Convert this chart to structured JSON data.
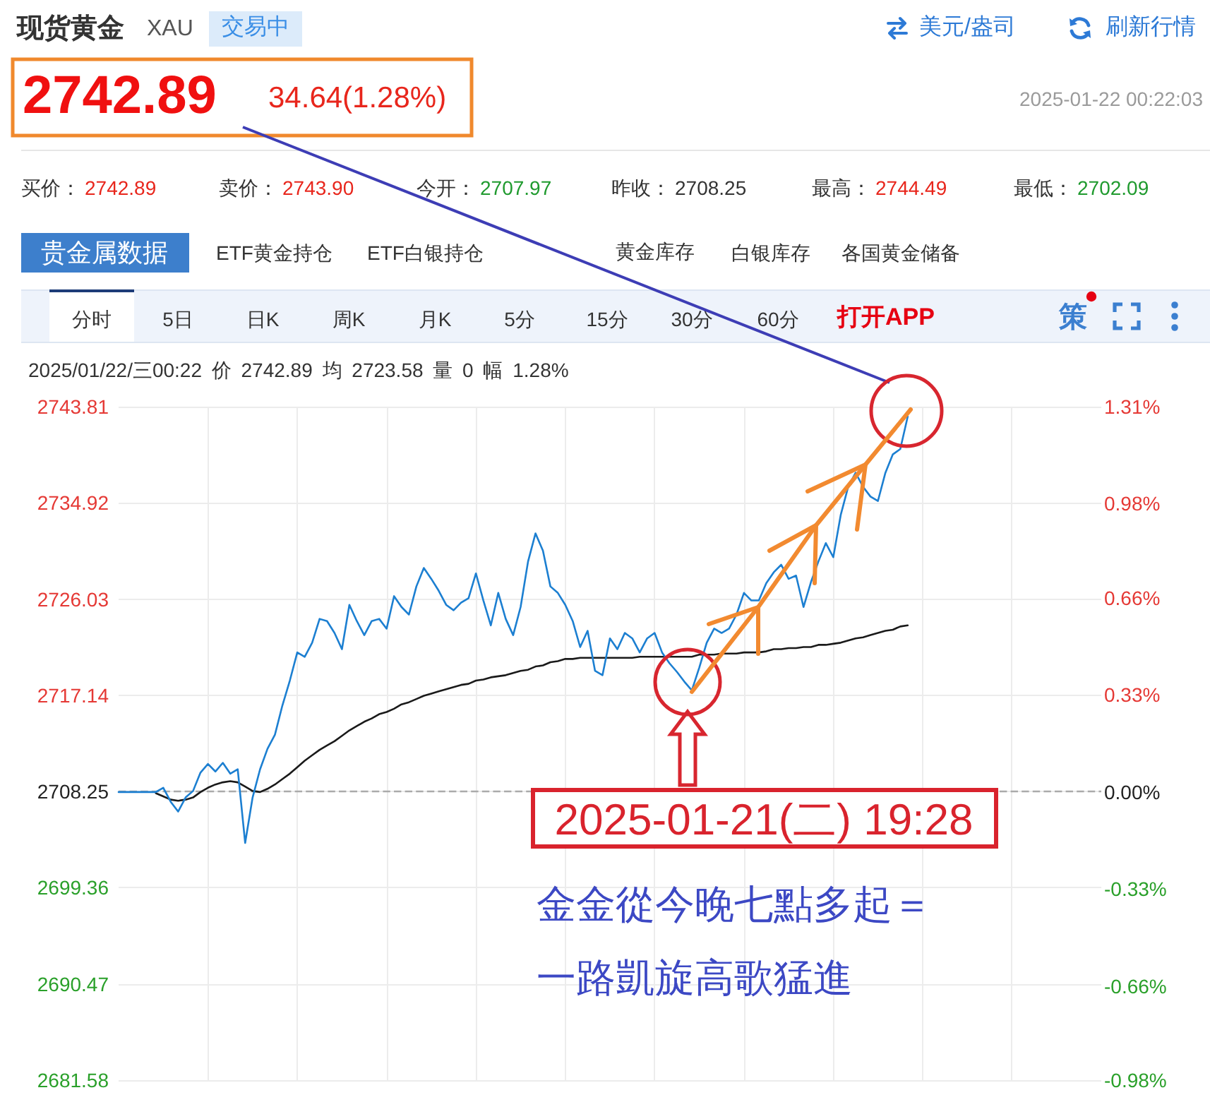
{
  "chart_data": {
    "type": "line",
    "title": "现货黄金",
    "subtitle": "XAU",
    "categories": [
      null,
      null,
      null,
      null,
      null,
      null,
      null,
      null,
      null,
      null,
      null,
      null,
      null,
      null,
      null,
      null,
      null,
      null,
      null,
      null,
      null,
      null,
      null,
      null,
      null,
      null,
      null,
      null,
      null,
      null,
      null,
      null,
      null,
      null,
      null,
      null,
      null,
      null,
      null,
      null,
      null,
      null,
      null,
      null,
      null,
      null,
      null,
      null,
      null,
      null,
      null,
      null,
      null,
      null,
      null,
      null,
      null,
      null,
      null,
      null,
      null,
      null,
      null,
      null,
      null,
      null,
      null,
      null,
      null,
      null,
      null,
      null,
      null,
      null,
      null,
      null,
      null,
      null,
      null,
      null,
      null,
      null,
      null,
      null,
      null,
      null,
      null,
      null,
      null,
      null,
      null,
      null,
      null,
      null,
      null,
      null,
      null,
      null,
      null,
      null,
      null,
      null,
      null,
      null,
      null,
      null,
      null,
      null,
      null,
      null,
      null,
      null,
      null,
      null,
      null,
      null,
      null,
      null,
      null,
      null,
      null,
      null,
      null,
      null,
      null,
      null,
      null,
      null,
      null,
      null,
      null,
      null,
      null
    ],
    "series": [
      {
        "color": "#1c7fd1",
        "values": [
          2708.2,
          2708.2,
          2708.2,
          2708.2,
          2708.2,
          2708.2,
          2708.6,
          2707.3,
          2706.4,
          2707.7,
          2708.3,
          2710.0,
          2710.8,
          2710.1,
          2710.9,
          2709.9,
          2710.3,
          2703.5,
          2707.7,
          2710.3,
          2712.2,
          2713.5,
          2716.2,
          2718.5,
          2721.1,
          2720.7,
          2722.0,
          2724.2,
          2724.0,
          2722.9,
          2721.4,
          2725.5,
          2724.0,
          2722.7,
          2724.0,
          2724.2,
          2723.3,
          2726.3,
          2725.3,
          2724.6,
          2727.2,
          2728.9,
          2727.9,
          2726.8,
          2725.5,
          2725.0,
          2725.7,
          2726.1,
          2728.4,
          2725.9,
          2723.6,
          2726.6,
          2724.2,
          2722.7,
          2725.3,
          2729.5,
          2732.1,
          2730.5,
          2727.2,
          2726.6,
          2725.5,
          2724.0,
          2721.6,
          2723.1,
          2719.4,
          2719.0,
          2722.4,
          2721.4,
          2722.9,
          2722.4,
          2721.1,
          2722.4,
          2722.9,
          2721.1,
          2720.1,
          2719.3,
          2718.4,
          2717.6,
          2719.7,
          2722.0,
          2723.3,
          2722.9,
          2723.3,
          2724.6,
          2726.6,
          2725.9,
          2725.9,
          2727.5,
          2728.5,
          2729.2,
          2727.9,
          2728.2,
          2725.3,
          2727.6,
          2729.5,
          2731.2,
          2729.9,
          2733.8,
          2736.4,
          2737.7,
          2736.4,
          2735.5,
          2735.1,
          2737.7,
          2739.4,
          2739.9,
          2742.9,
          null,
          null,
          null,
          null,
          null,
          null,
          null,
          null,
          null,
          null,
          null,
          null,
          null,
          null,
          null,
          null,
          null,
          null,
          null,
          null,
          null,
          null,
          null,
          null,
          null,
          null
        ]
      },
      {
        "color": "#1a1a1a",
        "values": [
          null,
          null,
          null,
          null,
          null,
          2708.1,
          2707.8,
          2707.5,
          2707.4,
          2707.5,
          2707.7,
          2708.2,
          2708.6,
          2708.9,
          2709.1,
          2709.2,
          2709.1,
          2708.7,
          2708.3,
          2708.2,
          2708.5,
          2708.9,
          2709.4,
          2709.9,
          2710.5,
          2711.1,
          2711.6,
          2712.1,
          2712.5,
          2712.9,
          2713.4,
          2713.9,
          2714.3,
          2714.7,
          2715.0,
          2715.4,
          2715.6,
          2715.9,
          2716.3,
          2716.5,
          2716.8,
          2717.1,
          2717.3,
          2717.5,
          2717.7,
          2717.9,
          2718.1,
          2718.2,
          2718.5,
          2718.6,
          2718.8,
          2718.9,
          2719.0,
          2719.2,
          2719.4,
          2719.5,
          2719.8,
          2719.9,
          2720.2,
          2720.3,
          2720.5,
          2720.5,
          2720.6,
          2720.6,
          2720.6,
          2720.6,
          2720.6,
          2720.6,
          2720.6,
          2720.6,
          2720.7,
          2720.7,
          2720.7,
          2720.7,
          2720.7,
          2720.7,
          2720.7,
          2720.7,
          2720.9,
          2720.9,
          2720.9,
          2721.0,
          2721.0,
          2721.0,
          2721.1,
          2721.1,
          2721.1,
          2721.2,
          2721.4,
          2721.4,
          2721.5,
          2721.5,
          2721.6,
          2721.6,
          2721.8,
          2721.8,
          2721.9,
          2722.0,
          2722.2,
          2722.4,
          2722.5,
          2722.7,
          2722.9,
          2723.1,
          2723.2,
          2723.5,
          2723.6,
          null,
          null,
          null,
          null,
          null,
          null,
          null,
          null,
          null,
          null,
          null,
          null,
          null,
          null,
          null,
          null,
          null,
          null,
          null,
          null,
          null,
          null,
          null,
          null,
          null,
          null
        ]
      }
    ],
    "ylim": [
      2681.58,
      2743.81
    ],
    "yticks": [
      2681.58,
      2690.47,
      2699.36,
      2708.25,
      2717.14,
      2726.03,
      2734.92,
      2743.81
    ],
    "y2lim": [
      -0.98,
      1.31
    ],
    "y2ticks": [
      {
        "value": -0.98,
        "label": "-0.98%"
      },
      {
        "value": -0.66,
        "label": "-0.66%"
      },
      {
        "value": -0.33,
        "label": "-0.33%"
      },
      {
        "value": 0,
        "label": "0.00%"
      },
      {
        "value": 0.33,
        "label": "0.33%"
      },
      {
        "value": 0.66,
        "label": "0.66%"
      },
      {
        "value": 0.98,
        "label": "0.98%"
      },
      {
        "value": 1.31,
        "label": "1.31%"
      }
    ],
    "ref_lines": [
      {
        "axis": "y",
        "value": 2708.25,
        "color": "#aaaaaa",
        "line_style": "dashed"
      }
    ],
    "grid": true,
    "marker": "none",
    "tick_labels": "y",
    "annotations": [
      "交易中",
      "美元/盎司",
      "刷新行情",
      "2742.89",
      "34.64(1.28%)",
      "2025-01-22 00:22:03",
      "买价：",
      "2742.89",
      "卖价：",
      "2743.90",
      "今开：",
      "2707.97",
      "昨收：",
      "2708.25",
      "最高：",
      "2744.49",
      "最低：",
      "2702.09",
      "贵金属数据",
      "ETF黄金持仓",
      "ETF白银持仓",
      "黄金库存",
      "白银库存",
      "各国黄金储备",
      "分时",
      "5日",
      "日K",
      "周K",
      "月K",
      "5分",
      "15分",
      "30分",
      "60分",
      "打开APP",
      "策",
      "2025/01/22/三00:22 价 2742.89 均 2723.58 量 0 幅 1.28%",
      "2025-01-21(二) 19:28",
      "金金從今晚七點多起＝",
      "一路凱旋高歌猛進"
    ]
  }
}
